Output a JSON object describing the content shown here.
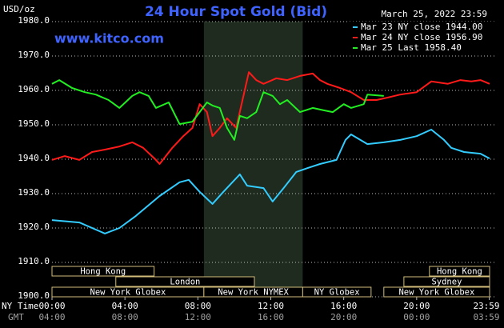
{
  "chart_data": {
    "type": "line",
    "title": "24 Hour Spot Gold (Bid)",
    "unit_label": "USD/oz",
    "timestamp": "March 25, 2022 23:59",
    "site": "www.kitco.com",
    "x_row_label": "NY Time",
    "x2_row_label": "GMT",
    "xlim": [
      0,
      24
    ],
    "xticks": [
      {
        "value": 0,
        "label": "00:00"
      },
      {
        "value": 4,
        "label": "04:00"
      },
      {
        "value": 8,
        "label": "08:00"
      },
      {
        "value": 12,
        "label": "12:00"
      },
      {
        "value": 16,
        "label": "16:00"
      },
      {
        "value": 20,
        "label": "20:00"
      },
      {
        "value": 23.98,
        "label": "23:59"
      }
    ],
    "x2tick_labels": [
      "04:00",
      "08:00",
      "12:00",
      "16:00",
      "20:00",
      "00:00",
      "03:59"
    ],
    "ylim": [
      1900,
      1980
    ],
    "yticks": [
      {
        "value": 1900,
        "label": "1900.0"
      },
      {
        "value": 1910,
        "label": "1910.0"
      },
      {
        "value": 1920,
        "label": "1920.0"
      },
      {
        "value": 1930,
        "label": "1930.0"
      },
      {
        "value": 1940,
        "label": "1940.0"
      },
      {
        "value": 1950,
        "label": "1950.0"
      },
      {
        "value": 1960,
        "label": "1960.0"
      },
      {
        "value": 1970,
        "label": "1970.0"
      },
      {
        "value": 1980,
        "label": "1980.0"
      }
    ],
    "grid": true,
    "highlight": {
      "start": 8.33,
      "end": 13.75
    },
    "session_rows": [
      [
        {
          "label": "Hong Kong",
          "start": 0,
          "end": 5.6
        },
        {
          "label": "Hong Kong",
          "start": 20.7,
          "end": 24
        }
      ],
      [
        {
          "label": "London",
          "start": 3.5,
          "end": 11.1
        },
        {
          "label": "Sydney",
          "start": 19.3,
          "end": 24
        }
      ],
      [
        {
          "label": "New York Globex",
          "start": 0,
          "end": 8.33
        },
        {
          "label": "New York NYMEX",
          "start": 8.33,
          "end": 13.75
        },
        {
          "label": "NY Globex",
          "start": 13.75,
          "end": 17.5
        },
        {
          "label": "New York Globex",
          "start": 18.2,
          "end": 24
        }
      ]
    ],
    "series": [
      {
        "name": "Mar 23 NY close 1944.00",
        "color": "#33ccff",
        "x": [
          0,
          1.5,
          2.9,
          3.7,
          4.6,
          5.9,
          7,
          7.5,
          8.1,
          8.8,
          9.4,
          10.3,
          10.7,
          11.6,
          12.1,
          12.7,
          13.4,
          14,
          14.7,
          15.6,
          16.1,
          16.4,
          17.3,
          18.2,
          19.1,
          20,
          20.8,
          21.5,
          21.9,
          22.6,
          23.5,
          24
        ],
        "values": [
          1922.3,
          1921.6,
          1918.4,
          1920.0,
          1923.5,
          1929.3,
          1933.3,
          1934.0,
          1930.5,
          1927.0,
          1930.5,
          1935.6,
          1932.3,
          1931.6,
          1927.7,
          1931.6,
          1936.3,
          1937.4,
          1938.6,
          1939.8,
          1945.6,
          1947.2,
          1944.4,
          1944.9,
          1945.6,
          1946.7,
          1948.6,
          1945.6,
          1943.3,
          1942.1,
          1941.6,
          1940.2
        ]
      },
      {
        "name": "Mar 24 NY close 1956.90",
        "color": "#ff1a1a",
        "x": [
          0,
          0.7,
          1.5,
          2.2,
          2.9,
          3.7,
          4.4,
          5,
          5.7,
          5.9,
          6.6,
          7.2,
          7.7,
          8.1,
          8.5,
          8.8,
          9.2,
          9.6,
          10.1,
          10.5,
          10.8,
          11.2,
          11.6,
          12.3,
          12.9,
          13.6,
          14.3,
          14.7,
          15.1,
          15.8,
          16.4,
          17.1,
          17.8,
          18.4,
          19.1,
          20,
          20.8,
          21.7,
          22.4,
          23,
          23.5,
          24
        ],
        "values": [
          1939.8,
          1940.9,
          1939.8,
          1942.1,
          1942.8,
          1943.7,
          1944.9,
          1943.3,
          1939.8,
          1938.6,
          1943.3,
          1946.7,
          1949.1,
          1956.0,
          1953.7,
          1946.7,
          1949.1,
          1951.9,
          1949.1,
          1958.4,
          1965.3,
          1963.0,
          1961.9,
          1963.5,
          1963.0,
          1964.2,
          1964.9,
          1963.0,
          1961.9,
          1960.7,
          1959.5,
          1957.2,
          1957.2,
          1957.9,
          1958.8,
          1959.5,
          1962.6,
          1961.9,
          1963.0,
          1962.6,
          1963.0,
          1961.9
        ]
      },
      {
        "name": "Mar 25 Last 1958.40",
        "color": "#22ee22",
        "x": [
          0,
          0.4,
          1.1,
          1.8,
          2.4,
          3.1,
          3.7,
          4.4,
          4.8,
          5.3,
          5.7,
          6.4,
          7,
          7.7,
          8.1,
          8.5,
          8.8,
          9.2,
          9.6,
          10,
          10.3,
          10.7,
          11.2,
          11.6,
          12.1,
          12.5,
          12.9,
          13.6,
          14.3,
          14.9,
          15.4,
          16,
          16.4,
          17.1,
          17.3,
          18.2
        ],
        "values": [
          1961.9,
          1963.0,
          1960.7,
          1959.5,
          1958.8,
          1957.2,
          1954.9,
          1958.4,
          1959.5,
          1958.4,
          1954.9,
          1956.5,
          1950.2,
          1950.9,
          1953.7,
          1956.5,
          1955.6,
          1954.9,
          1949.1,
          1945.6,
          1952.6,
          1951.9,
          1953.7,
          1959.5,
          1958.4,
          1956.0,
          1957.2,
          1953.7,
          1954.9,
          1954.2,
          1953.7,
          1956.0,
          1954.9,
          1956.0,
          1958.8,
          1958.4
        ]
      }
    ]
  }
}
